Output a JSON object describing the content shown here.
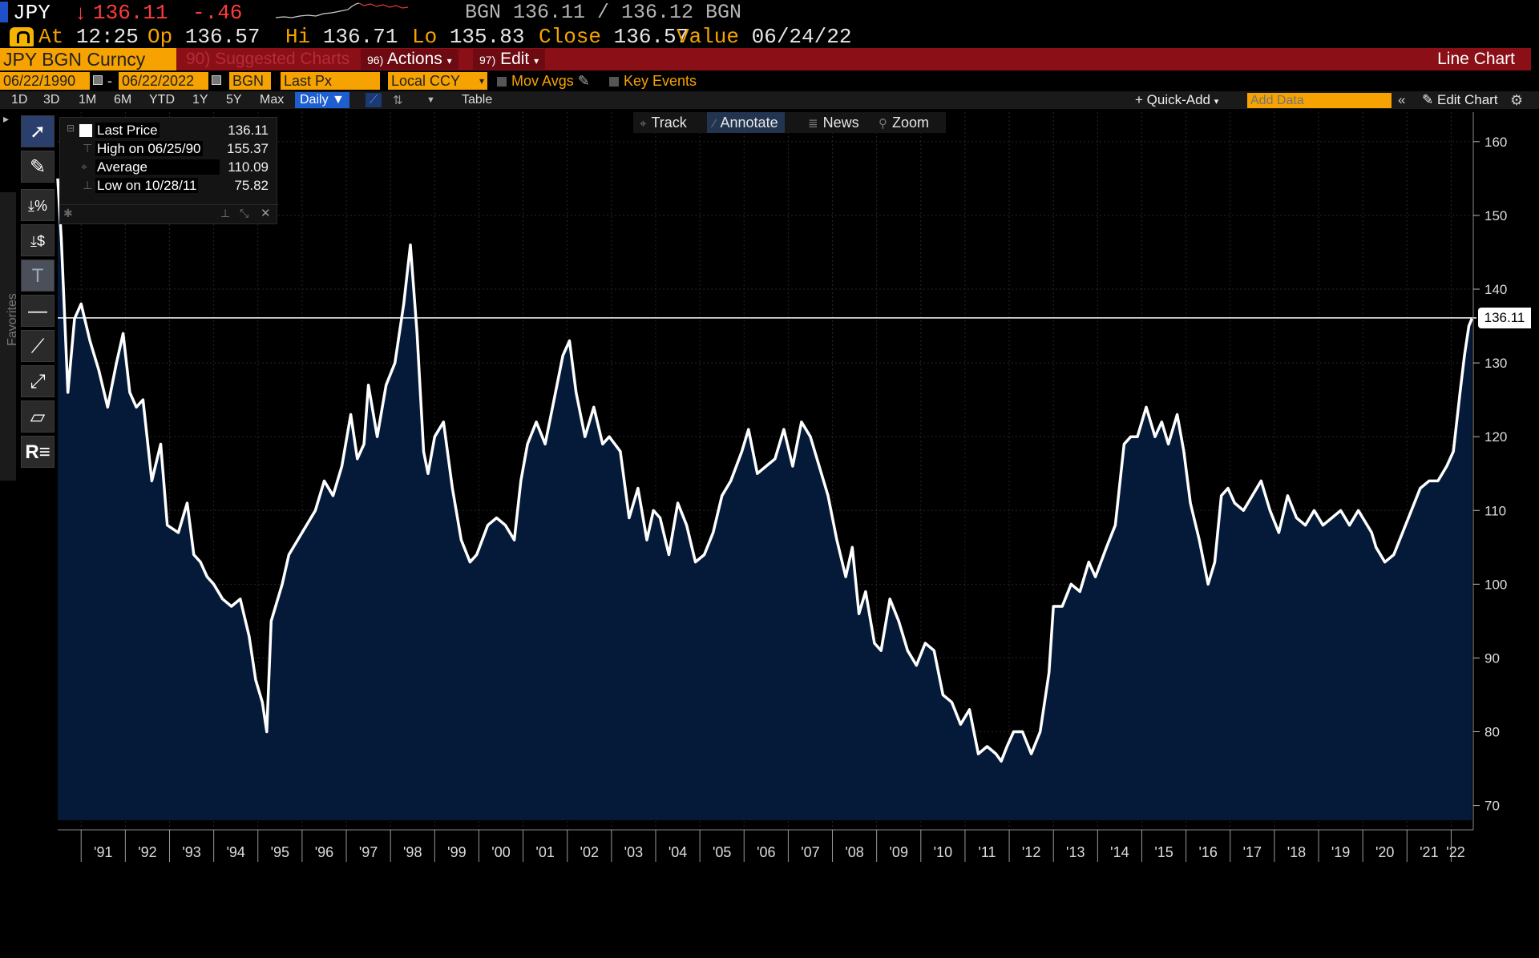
{
  "quote": {
    "ticker": "JPY",
    "arrow": "↓",
    "last": "136.11",
    "change": "-.46",
    "source_line": "BGN 136.11 / 136.12 BGN",
    "at_label": "At",
    "at_value": "12:25",
    "op_label": "Op",
    "op_value": "136.57",
    "hi_label": "Hi",
    "hi_value": "136.71",
    "lo_label": "Lo",
    "lo_value": "135.83",
    "close_label": "Close",
    "close_value": "136.57",
    "value_label": "Value",
    "value_date": "06/24/22"
  },
  "command_bar": {
    "security": "JPY BGN Curncy",
    "suggested": "90) Suggested Charts",
    "actions": "Actions",
    "actions_num": "96)",
    "edit": "Edit",
    "edit_num": "97)",
    "chart_type": "Line Chart"
  },
  "params": {
    "start_date": "06/22/1990",
    "end_date": "06/22/2022",
    "source": "BGN",
    "field": "Last Px",
    "currency": "Local CCY",
    "mov_avgs": "Mov Avgs",
    "key_events": "Key Events"
  },
  "range_row": {
    "ranges": [
      "1D",
      "3D",
      "1M",
      "6M",
      "YTD",
      "1Y",
      "5Y",
      "Max"
    ],
    "frequency": "Daily",
    "table": "Table",
    "quick_add": "+ Quick-Add",
    "add_data_placeholder": "Add Data",
    "edit_chart": "Edit Chart"
  },
  "toolbar": {
    "favorites": "Favorites"
  },
  "annotation_bar": {
    "track": "Track",
    "annotate": "Annotate",
    "news": "News",
    "zoom": "Zoom"
  },
  "legend": {
    "last_price_label": "Last Price",
    "last_price": "136.11",
    "high_label": "High on 06/25/90",
    "high": "155.37",
    "average_label": "Average",
    "average": "110.09",
    "low_label": "Low on 10/28/11",
    "low": "75.82"
  },
  "price_tag": "136.11",
  "colors": {
    "area_fill": "#041a38",
    "line": "#ffffff",
    "accent_orange": "#f6a200",
    "command_red": "#8b0f17",
    "down_red": "#ff3b3b"
  },
  "chart_data": {
    "type": "area",
    "title": "",
    "xlabel": "",
    "ylabel": "",
    "x_tick_labels": [
      "'91",
      "'92",
      "'93",
      "'94",
      "'95",
      "'96",
      "'97",
      "'98",
      "'99",
      "'00",
      "'01",
      "'02",
      "'03",
      "'04",
      "'05",
      "'06",
      "'07",
      "'08",
      "'09",
      "'10",
      "'11",
      "'12",
      "'13",
      "'14",
      "'15",
      "'16",
      "'17",
      "'18",
      "'19",
      "'20",
      "'21",
      "'22"
    ],
    "y_ticks": [
      70,
      80,
      90,
      100,
      110,
      120,
      130,
      140,
      150,
      160
    ],
    "ylim": [
      68,
      164
    ],
    "xlim": [
      1990.47,
      2022.5
    ],
    "reference_line": 136.11,
    "grid": true,
    "series": [
      {
        "x": [
          1990.47,
          1990.55,
          1990.7,
          1990.85,
          1991.0,
          1991.2,
          1991.4,
          1991.6,
          1991.8,
          1991.95,
          1992.1,
          1992.25,
          1992.4,
          1992.6,
          1992.8,
          1992.95,
          1993.2,
          1993.4,
          1993.55,
          1993.7,
          1993.85,
          1994.0,
          1994.2,
          1994.4,
          1994.6,
          1994.8,
          1994.95,
          1995.1,
          1995.2,
          1995.3,
          1995.55,
          1995.7,
          1995.9,
          1996.1,
          1996.3,
          1996.5,
          1996.7,
          1996.9,
          1997.1,
          1997.25,
          1997.4,
          1997.5,
          1997.7,
          1997.9,
          1998.1,
          1998.3,
          1998.45,
          1998.6,
          1998.75,
          1998.85,
          1999.0,
          1999.2,
          1999.4,
          1999.6,
          1999.8,
          1999.95,
          2000.2,
          2000.4,
          2000.6,
          2000.8,
          2000.95,
          2001.1,
          2001.3,
          2001.5,
          2001.7,
          2001.9,
          2002.05,
          2002.2,
          2002.4,
          2002.6,
          2002.8,
          2002.95,
          2003.2,
          2003.4,
          2003.6,
          2003.8,
          2003.95,
          2004.1,
          2004.3,
          2004.5,
          2004.7,
          2004.9,
          2005.1,
          2005.3,
          2005.5,
          2005.7,
          2005.95,
          2006.1,
          2006.3,
          2006.5,
          2006.7,
          2006.9,
          2007.1,
          2007.3,
          2007.5,
          2007.7,
          2007.9,
          2008.1,
          2008.3,
          2008.45,
          2008.6,
          2008.75,
          2008.95,
          2009.1,
          2009.3,
          2009.5,
          2009.7,
          2009.9,
          2010.1,
          2010.3,
          2010.5,
          2010.7,
          2010.9,
          2011.1,
          2011.3,
          2011.5,
          2011.7,
          2011.82,
          2011.95,
          2012.1,
          2012.3,
          2012.5,
          2012.7,
          2012.9,
          2013.0,
          2013.2,
          2013.4,
          2013.6,
          2013.8,
          2013.95,
          2014.2,
          2014.4,
          2014.6,
          2014.75,
          2014.9,
          2015.1,
          2015.3,
          2015.45,
          2015.6,
          2015.8,
          2015.95,
          2016.1,
          2016.3,
          2016.5,
          2016.65,
          2016.8,
          2016.95,
          2017.1,
          2017.3,
          2017.5,
          2017.7,
          2017.9,
          2018.1,
          2018.3,
          2018.5,
          2018.7,
          2018.9,
          2019.1,
          2019.3,
          2019.5,
          2019.7,
          2019.9,
          2020.1,
          2020.2,
          2020.3,
          2020.5,
          2020.7,
          2020.9,
          2021.1,
          2021.3,
          2021.5,
          2021.7,
          2021.9,
          2022.05,
          2022.2,
          2022.3,
          2022.4,
          2022.47
        ],
        "values": [
          155,
          147,
          126,
          136,
          138,
          133,
          129,
          124,
          130,
          134,
          126,
          124,
          125,
          114,
          119,
          108,
          107,
          111,
          104,
          103,
          101,
          100,
          98,
          97,
          98,
          93,
          87,
          84,
          80,
          95,
          100,
          104,
          106,
          108,
          110,
          114,
          112,
          116,
          123,
          117,
          119,
          127,
          120,
          127,
          130,
          138,
          146,
          134,
          118,
          115,
          120,
          122,
          113,
          106,
          103,
          104,
          108,
          109,
          108,
          106,
          114,
          119,
          122,
          119,
          125,
          131,
          133,
          126,
          120,
          124,
          119,
          120,
          118,
          109,
          113,
          106,
          110,
          109,
          104,
          111,
          108,
          103,
          104,
          107,
          112,
          114,
          118,
          121,
          115,
          116,
          117,
          121,
          116,
          122,
          120,
          116,
          112,
          106,
          101,
          105,
          96,
          99,
          92,
          91,
          98,
          95,
          91,
          89,
          92,
          91,
          85,
          84,
          81,
          83,
          77,
          78,
          77,
          76,
          78,
          80,
          80,
          77,
          80,
          88,
          97,
          97,
          100,
          99,
          103,
          101,
          105,
          108,
          119,
          120,
          120,
          124,
          120,
          122,
          119,
          123,
          118,
          111,
          106,
          100,
          103,
          112,
          113,
          111,
          110,
          112,
          114,
          110,
          107,
          112,
          109,
          108,
          110,
          108,
          109,
          110,
          108,
          110,
          108,
          107,
          105,
          103,
          104,
          107,
          110,
          113,
          114,
          114,
          116,
          118,
          126,
          131,
          135,
          136
        ]
      }
    ]
  }
}
